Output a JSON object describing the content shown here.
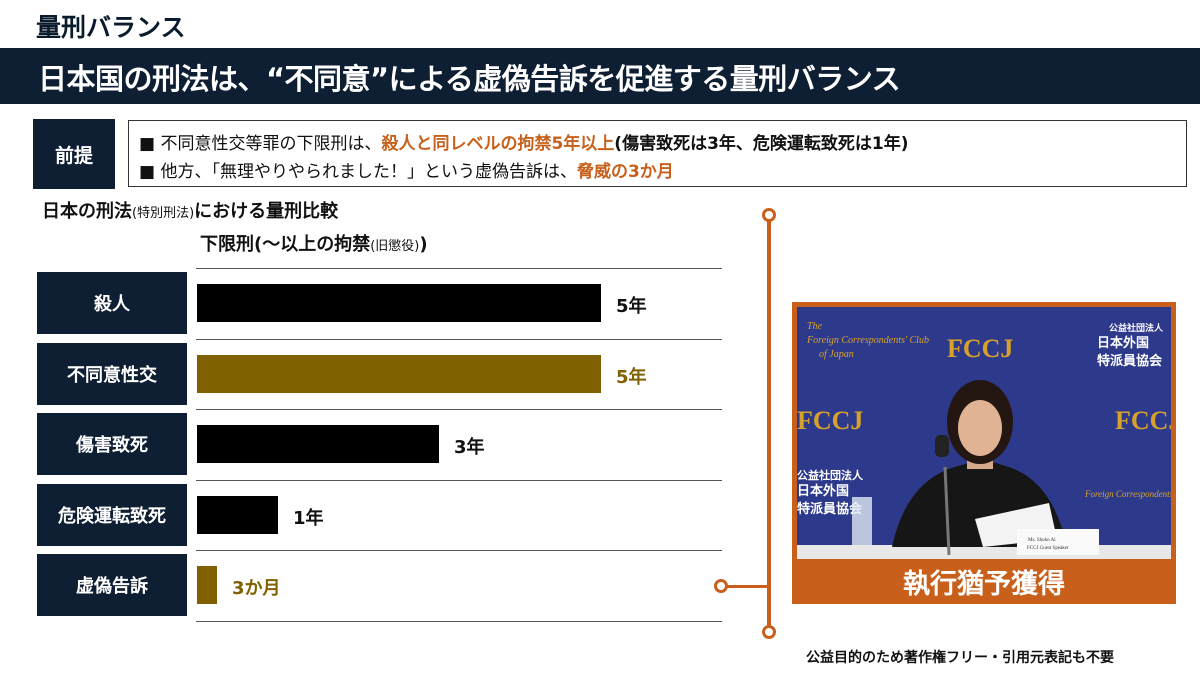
{
  "section_label": "量刑バランス",
  "title": "日本国の刑法は、“不同意”による虚偽告訴を促進する量刑バランス",
  "premise": {
    "tag": "前提",
    "line1": {
      "bullet": "■",
      "pre": "不同意性交等罪の下限刑は、",
      "highlight": "殺人と同レベルの拘禁5年以上",
      "post": "(傷害致死は3年、危険運転致死は1年)"
    },
    "line2": {
      "bullet": "■",
      "pre": "他方、「無理やりやられました！」という虚偽告訴は、",
      "highlight": "脅威の3か月"
    }
  },
  "chart_heading": {
    "main": "日本の刑法",
    "small": "(特別刑法)",
    "rest": "における量刑比較"
  },
  "axis_heading": {
    "main": "下限刑(～以上の拘禁",
    "small": "(旧懲役)",
    "end": ")"
  },
  "chart_data": {
    "type": "bar",
    "orientation": "horizontal",
    "categories": [
      "殺人",
      "不同意性交",
      "傷害致死",
      "危険運転致死",
      "虚偽告訴"
    ],
    "values_years": [
      5,
      5,
      3,
      1,
      0.25
    ],
    "value_labels": [
      "5年",
      "5年",
      "3年",
      "1年",
      "3か月"
    ],
    "bar_colors": [
      "#000000",
      "#806000",
      "#000000",
      "#000000",
      "#806000"
    ],
    "label_colors": [
      "#111111",
      "#806000",
      "#111111",
      "#111111",
      "#806000"
    ],
    "xlim": [
      0,
      5
    ],
    "grid": false,
    "legend": "none"
  },
  "photo": {
    "caption": "執行猶予獲得",
    "backdrop_texts": [
      "The",
      "Foreign Correspondents' Club",
      "of Japan",
      "FCCJ",
      "公益社団法人",
      "日本外国",
      "特派員協会"
    ],
    "nameplate": [
      "Ms. Shoko Ai",
      "FCCJ Guest Speaker"
    ]
  },
  "footer": "公益目的のため著作権フリー・引用元表記も不要",
  "colors": {
    "navy": "#0e1e33",
    "accent": "#c8601b",
    "gold": "#806000",
    "photo_bg": "#2d3a8c"
  }
}
